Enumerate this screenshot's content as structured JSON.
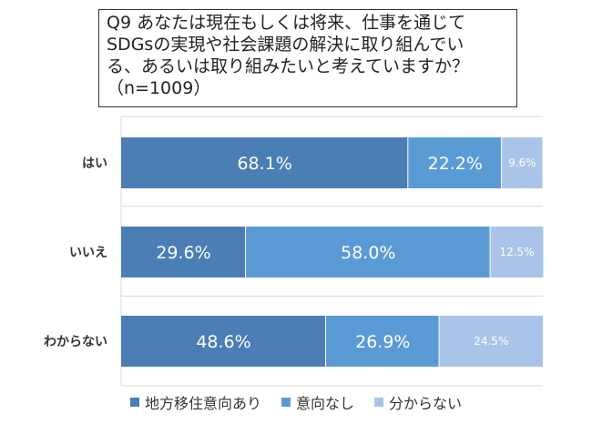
{
  "title": "Q9 あなたは現在もしくは将来、仕事を通じて\nSDGsの実現や社会課題の解決に取り組んでい\nる、あるいは取り組みたいと考えていますか？\n（n=1009）",
  "chart_data": {
    "type": "bar",
    "orientation": "horizontal",
    "stacked": true,
    "categories": [
      "はい",
      "いいえ",
      "わからない"
    ],
    "series": [
      {
        "name": "地方移住意向あり",
        "color": "#4a7eb5",
        "values": [
          68.1,
          29.6,
          48.6
        ],
        "labels": [
          "68.1%",
          "29.6%",
          "48.6%"
        ]
      },
      {
        "name": "意向なし",
        "color": "#5b9bd5",
        "values": [
          22.2,
          58.0,
          26.9
        ],
        "labels": [
          "22.2%",
          "58.0%",
          "26.9%"
        ]
      },
      {
        "name": "分からない",
        "color": "#a9c4e8",
        "values": [
          9.6,
          12.5,
          24.5
        ],
        "labels": [
          "9.6%",
          "12.5%",
          "24.5%"
        ]
      }
    ],
    "xlim": [
      0,
      100
    ],
    "grid": true,
    "legend": "bottom"
  }
}
